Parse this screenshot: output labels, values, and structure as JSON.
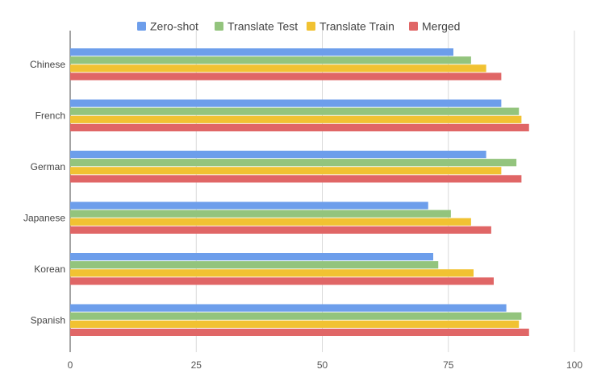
{
  "chart_data": {
    "type": "bar",
    "orientation": "horizontal",
    "title": "",
    "xlabel": "",
    "ylabel": "",
    "categories": [
      "Chinese",
      "French",
      "German",
      "Japanese",
      "Korean",
      "Spanish"
    ],
    "series": [
      {
        "name": "Zero-shot",
        "color": "#6d9eeb",
        "values": [
          76,
          85.5,
          82.5,
          71,
          72,
          86.5
        ]
      },
      {
        "name": "Translate Test",
        "color": "#93c47d",
        "values": [
          79.5,
          89,
          88.5,
          75.5,
          73,
          89.5
        ]
      },
      {
        "name": "Translate Train",
        "color": "#f1c232",
        "values": [
          82.5,
          89.5,
          85.5,
          79.5,
          80,
          89
        ]
      },
      {
        "name": "Merged",
        "color": "#e06666",
        "values": [
          85.5,
          91,
          89.5,
          83.5,
          84,
          91
        ]
      }
    ],
    "xlim": [
      0,
      100
    ],
    "xticks": [
      0,
      25,
      50,
      75,
      100
    ],
    "grid": true,
    "legend": "top-center"
  }
}
